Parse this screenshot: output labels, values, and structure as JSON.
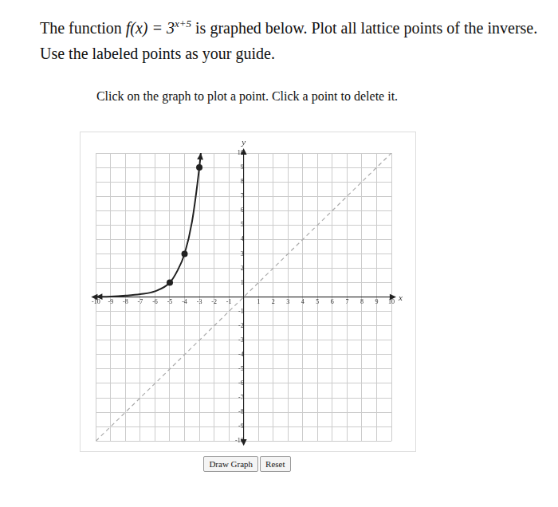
{
  "question": {
    "before": "The function ",
    "math": "f(x) = 3",
    "exponent": "x+5",
    "after": " is graphed below. Plot all lattice points of the inverse. Use the labeled points as your guide."
  },
  "instruction": "Click on the graph to plot a point. Click a point to delete it.",
  "buttons": [
    "Draw Graph",
    "Reset"
  ],
  "chart_data": {
    "type": "line",
    "x_label": "x",
    "y_label": "y",
    "xlim": [
      -10,
      10
    ],
    "ylim": [
      -10,
      10
    ],
    "xticks": [
      -10,
      -9,
      -8,
      -7,
      -6,
      -5,
      -4,
      -3,
      -2,
      -1,
      1,
      2,
      3,
      4,
      5,
      6,
      7,
      8,
      9,
      10
    ],
    "yticks": [
      -10,
      -9,
      -8,
      -7,
      -6,
      -5,
      -4,
      -3,
      -2,
      -1,
      1,
      2,
      3,
      4,
      5,
      6,
      7,
      8,
      9,
      10
    ],
    "grid": true,
    "series": [
      {
        "type": "line",
        "color": "#222222",
        "line_style": "solid",
        "marker": "none",
        "x": [
          -10,
          -9,
          -8,
          -7,
          -6,
          -5,
          -4.5,
          -4,
          -3.5,
          -3,
          -2.9
        ],
        "values": [
          0.02,
          0.04,
          0.1,
          0.2,
          0.4,
          1,
          1.8,
          3,
          5.2,
          9,
          10
        ]
      },
      {
        "type": "scatter",
        "color": "#222222",
        "marker": "circle",
        "x": [
          -5,
          -4,
          -3
        ],
        "values": [
          1,
          3,
          9
        ]
      },
      {
        "type": "line",
        "color": "#aaaaaa",
        "line_style": "dashed",
        "marker": "none",
        "x": [
          -10,
          10
        ],
        "values": [
          -10,
          10
        ]
      }
    ]
  }
}
